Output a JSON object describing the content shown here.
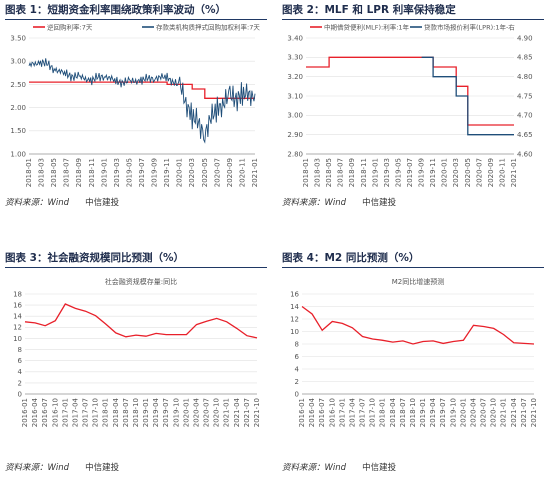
{
  "panels": [
    {
      "title": "图表 1：短期资金利率围绕政策利率波动（%）",
      "source": "资料来源：Wind",
      "brand": "中信建投"
    },
    {
      "title": "图表 2：MLF 和 LPR 利率保持稳定",
      "source": "资料来源：Wind",
      "brand": "中信建投"
    },
    {
      "title": "图表 3：社会融资规模同比预测（%）",
      "source": "资料来源：Wind",
      "brand": "中信建投"
    },
    {
      "title": "图表 4：M2 同比预测（%）",
      "source": "资料来源：Wind",
      "brand": "中信建投"
    }
  ],
  "chart_data": [
    {
      "type": "line",
      "title": "",
      "dual_axis": false,
      "ylim": [
        1.0,
        3.5
      ],
      "yticks": [
        "3.50",
        "3.00",
        "2.50",
        "2.00",
        "1.50",
        "1.00"
      ],
      "categories": [
        "2018-01",
        "2018-03",
        "2018-05",
        "2018-07",
        "2018-09",
        "2018-11",
        "2019-01",
        "2019-03",
        "2019-05",
        "2019-07",
        "2019-09",
        "2019-11",
        "2020-01",
        "2020-03",
        "2020-05",
        "2020-07",
        "2020-09",
        "2020-11",
        "2021-01"
      ],
      "series": [
        {
          "name": "逆回购利率:7天",
          "color": "#e8202a",
          "values": [
            2.55,
            2.55,
            2.55,
            2.55,
            2.55,
            2.55,
            2.55,
            2.55,
            2.55,
            2.55,
            2.55,
            2.5,
            2.5,
            2.4,
            2.2,
            2.2,
            2.2,
            2.2,
            2.2
          ]
        },
        {
          "name": "存款类机构质押式回购加权利率:7天",
          "color": "#1f4e79",
          "values": [
            2.9,
            3.0,
            2.85,
            2.7,
            2.65,
            2.6,
            2.7,
            2.55,
            2.55,
            2.6,
            2.65,
            2.65,
            2.45,
            1.8,
            1.5,
            2.0,
            2.2,
            2.25,
            2.3
          ]
        }
      ]
    },
    {
      "type": "line",
      "title": "",
      "dual_axis": true,
      "ylim": [
        2.8,
        3.4
      ],
      "yticks": [
        "3.40",
        "3.30",
        "3.20",
        "3.10",
        "3.00",
        "2.90",
        "2.80"
      ],
      "ylim_right": [
        4.6,
        4.9
      ],
      "yticks_right": [
        "4.90",
        "4.85",
        "4.80",
        "4.75",
        "4.70",
        "4.65",
        "4.60"
      ],
      "categories": [
        "2018-01",
        "2018-03",
        "2018-05",
        "2018-07",
        "2018-09",
        "2018-11",
        "2019-01",
        "2019-03",
        "2019-05",
        "2019-07",
        "2019-09",
        "2019-11",
        "2020-01",
        "2020-03",
        "2020-05",
        "2020-07",
        "2020-09",
        "2020-11",
        "2021-01"
      ],
      "series": [
        {
          "name": "中期借贷便利(MLF):利率:1年",
          "color": "#e8202a",
          "axis": "left",
          "values": [
            3.25,
            3.25,
            3.3,
            3.3,
            3.3,
            3.3,
            3.3,
            3.3,
            3.3,
            3.3,
            3.3,
            3.25,
            3.25,
            3.15,
            2.95,
            2.95,
            2.95,
            2.95,
            2.95
          ]
        },
        {
          "name": "贷款市场报价利率(LPR):1年-右",
          "color": "#1f4e79",
          "axis": "right",
          "values": [
            null,
            null,
            null,
            null,
            null,
            null,
            null,
            null,
            null,
            null,
            4.85,
            4.8,
            4.8,
            4.75,
            4.65,
            4.65,
            4.65,
            4.65,
            4.65
          ]
        }
      ]
    },
    {
      "type": "line",
      "title": "社会融资规模存量:同比",
      "dual_axis": false,
      "ylim": [
        0,
        18
      ],
      "yticks": [
        "18",
        "16",
        "14",
        "12",
        "10",
        "8",
        "6",
        "4",
        "2",
        "0"
      ],
      "categories": [
        "2016-01",
        "2016-04",
        "2016-07",
        "2016-10",
        "2017-01",
        "2017-04",
        "2017-07",
        "2017-10",
        "2018-01",
        "2018-04",
        "2018-07",
        "2018-10",
        "2019-01",
        "2019-04",
        "2019-07",
        "2019-10",
        "2020-01",
        "2020-04",
        "2020-07",
        "2020-10",
        "2021-01",
        "2021-04",
        "2021-07",
        "2021-10"
      ],
      "series": [
        {
          "name": "",
          "color": "#e8202a",
          "values": [
            13.0,
            12.8,
            12.3,
            13.2,
            16.2,
            15.4,
            14.9,
            14.1,
            12.6,
            11.0,
            10.3,
            10.6,
            10.4,
            10.9,
            10.7,
            10.7,
            10.7,
            12.5,
            13.1,
            13.6,
            13.0,
            11.8,
            10.5,
            10.1
          ]
        }
      ]
    },
    {
      "type": "line",
      "title": "M2同比增速预测",
      "dual_axis": false,
      "ylim": [
        0,
        16
      ],
      "yticks": [
        "16",
        "14",
        "12",
        "10",
        "8",
        "6",
        "4",
        "2",
        "0"
      ],
      "categories": [
        "2016-01",
        "2016-04",
        "2016-07",
        "2016-10",
        "2017-01",
        "2017-04",
        "2017-07",
        "2017-10",
        "2018-01",
        "2018-04",
        "2018-07",
        "2018-10",
        "2019-01",
        "2019-04",
        "2019-07",
        "2019-10",
        "2020-01",
        "2020-04",
        "2020-07",
        "2020-10",
        "2021-01",
        "2021-04",
        "2021-07",
        "2021-10"
      ],
      "series": [
        {
          "name": "",
          "color": "#e8202a",
          "values": [
            14.0,
            12.8,
            10.2,
            11.6,
            11.3,
            10.6,
            9.2,
            8.8,
            8.6,
            8.3,
            8.5,
            8.0,
            8.4,
            8.5,
            8.1,
            8.4,
            8.6,
            11.0,
            10.8,
            10.5,
            9.5,
            8.2,
            8.1,
            8.0
          ]
        }
      ]
    }
  ]
}
